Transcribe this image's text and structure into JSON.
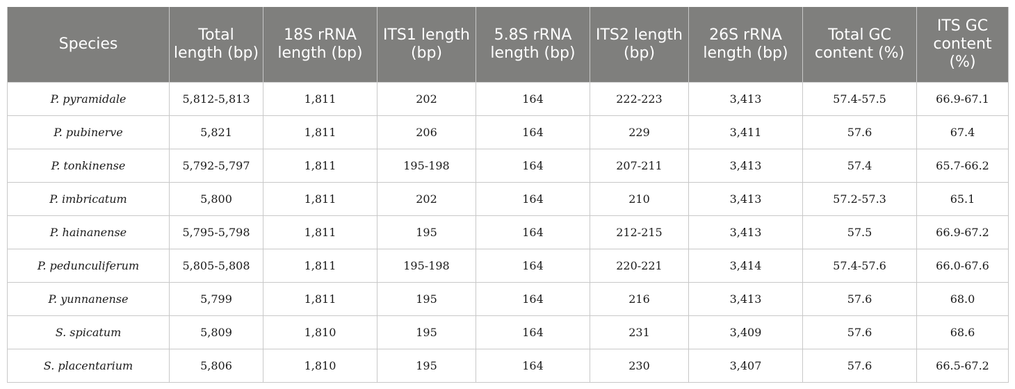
{
  "table": {
    "headers": [
      "Species",
      "Total length (bp)",
      "18S rRNA length (bp)",
      "ITS1 length (bp)",
      "5.8S rRNA length (bp)",
      "ITS2 length (bp)",
      "26S rRNA length (bp)",
      "Total GC content (%)",
      "ITS GC content (%)"
    ],
    "rows": [
      [
        "P. pyramidale",
        "5,812-5,813",
        "1,811",
        "202",
        "164",
        "222-223",
        "3,413",
        "57.4-57.5",
        "66.9-67.1"
      ],
      [
        "P. pubinerve",
        "5,821",
        "1,811",
        "206",
        "164",
        "229",
        "3,411",
        "57.6",
        "67.4"
      ],
      [
        "P. tonkinense",
        "5,792-5,797",
        "1,811",
        "195-198",
        "164",
        "207-211",
        "3,413",
        "57.4",
        "65.7-66.2"
      ],
      [
        "P. imbricatum",
        "5,800",
        "1,811",
        "202",
        "164",
        "210",
        "3,413",
        "57.2-57.3",
        "65.1"
      ],
      [
        "P. hainanense",
        "5,795-5,798",
        "1,811",
        "195",
        "164",
        "212-215",
        "3,413",
        "57.5",
        "66.9-67.2"
      ],
      [
        "P. pedunculiferum",
        "5,805-5,808",
        "1,811",
        "195-198",
        "164",
        "220-221",
        "3,414",
        "57.4-57.6",
        "66.0-67.6"
      ],
      [
        "P. yunnanense",
        "5,799",
        "1,811",
        "195",
        "164",
        "216",
        "3,413",
        "57.6",
        "68.0"
      ],
      [
        "S. spicatum",
        "5,809",
        "1,810",
        "195",
        "164",
        "231",
        "3,409",
        "57.6",
        "68.6"
      ],
      [
        "S. placentarium",
        "5,806",
        "1,810",
        "195",
        "164",
        "230",
        "3,407",
        "57.6",
        "66.5-67.2"
      ]
    ]
  },
  "colors": {
    "header_bg": "#7f7f7d",
    "header_text": "#ffffff",
    "grid": "#c8c8c8"
  }
}
